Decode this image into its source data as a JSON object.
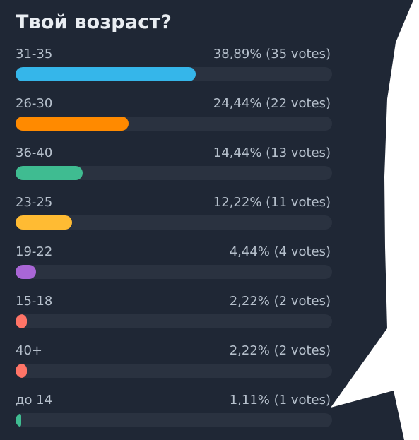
{
  "poll": {
    "title": "Твой возраст?",
    "options": [
      {
        "label": "31-35",
        "value_text": "38,89% (35 votes)",
        "percent": 38.89,
        "color": "#35b6ea"
      },
      {
        "label": "26-30",
        "value_text": "24,44% (22 votes)",
        "percent": 24.44,
        "color": "#ff8a00"
      },
      {
        "label": "36-40",
        "value_text": "14,44% (13 votes)",
        "percent": 14.44,
        "color": "#3fbc91"
      },
      {
        "label": "23-25",
        "value_text": "12,22% (11 votes)",
        "percent": 12.22,
        "color": "#ffbb33"
      },
      {
        "label": "19-22",
        "value_text": "4,44% (4 votes)",
        "percent": 4.44,
        "color": "#a966d6"
      },
      {
        "label": "15-18",
        "value_text": "2,22% (2 votes)",
        "percent": 2.22,
        "color": "#ff7467"
      },
      {
        "label": "40+",
        "value_text": "2,22% (2 votes)",
        "percent": 2.22,
        "color": "#ff7467"
      },
      {
        "label": "до 14",
        "value_text": "1,11% (1 votes)",
        "percent": 1.11,
        "color": "#3fbc91"
      }
    ]
  }
}
